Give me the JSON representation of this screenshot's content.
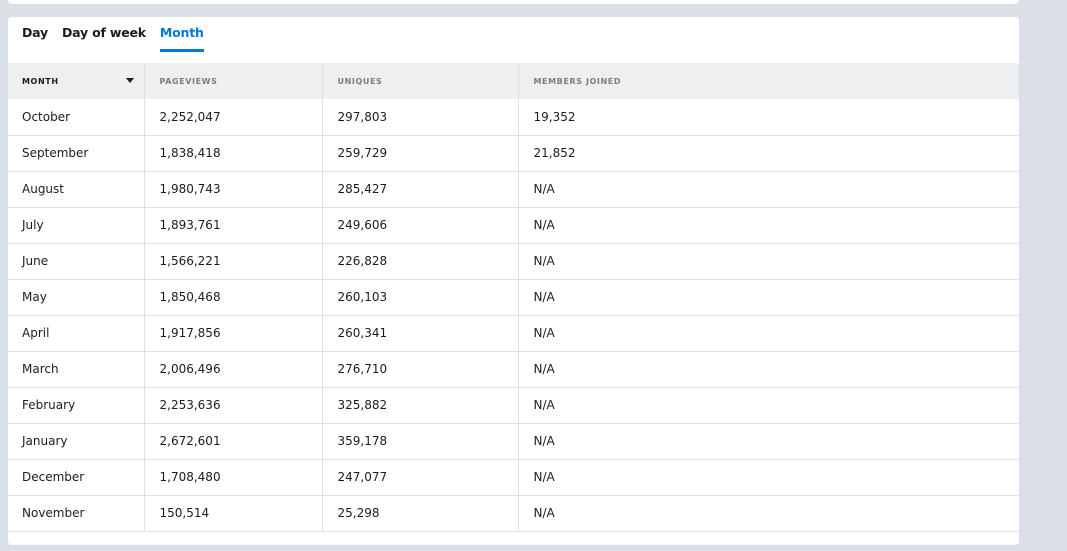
{
  "tabs": [
    {
      "label": "Day",
      "active": false
    },
    {
      "label": "Day of week",
      "active": false
    },
    {
      "label": "Month",
      "active": true
    }
  ],
  "table": {
    "headers": [
      "MONTH",
      "PAGEVIEWS",
      "UNIQUES",
      "MEMBERS JOINED"
    ],
    "sort_column": "MONTH",
    "sort_direction": "descending",
    "rows": [
      [
        "October",
        "2,252,047",
        "297,803",
        "19,352"
      ],
      [
        "September",
        "1,838,418",
        "259,729",
        "21,852"
      ],
      [
        "August",
        "1,980,743",
        "285,427",
        "N/A"
      ],
      [
        "July",
        "1,893,761",
        "249,606",
        "N/A"
      ],
      [
        "June",
        "1,566,221",
        "226,828",
        "N/A"
      ],
      [
        "May",
        "1,850,468",
        "260,103",
        "N/A"
      ],
      [
        "April",
        "1,917,856",
        "260,341",
        "N/A"
      ],
      [
        "March",
        "2,006,496",
        "276,710",
        "N/A"
      ],
      [
        "February",
        "2,253,636",
        "325,882",
        "N/A"
      ],
      [
        "January",
        "2,672,601",
        "359,178",
        "N/A"
      ],
      [
        "December",
        "1,708,480",
        "247,077",
        "N/A"
      ],
      [
        "November",
        "150,514",
        "25,298",
        "N/A"
      ]
    ]
  },
  "colors": {
    "page_background": "#dae0e6",
    "card_background": "#ffffff",
    "header_background": "#edeff1",
    "accent": "#0079d3",
    "text": "#1c1c1c",
    "muted_text": "#7c7c7c",
    "divider": "#dde1e4"
  }
}
